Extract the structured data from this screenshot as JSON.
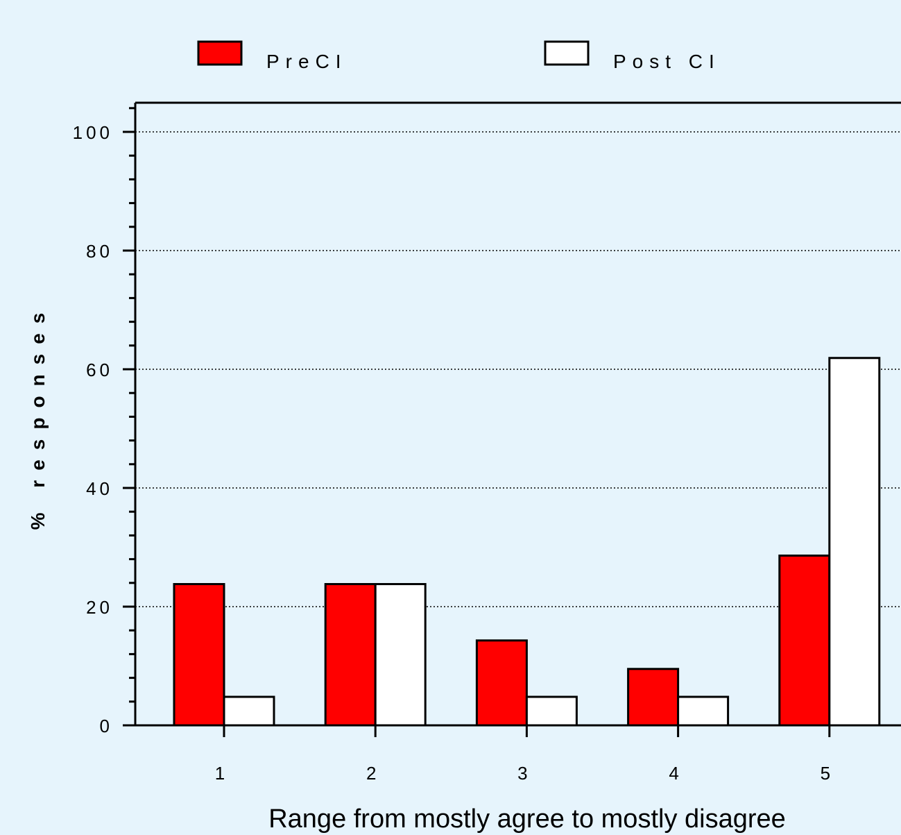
{
  "colors": {
    "background": "#e6f4fc",
    "pre": "#ff0000",
    "post": "#ffffff",
    "axis": "#000000"
  },
  "chart_data": {
    "type": "bar",
    "title": "",
    "xlabel": "Range from mostly agree to mostly disagree",
    "ylabel": "% responses",
    "categories": [
      "1",
      "2",
      "3",
      "4",
      "5"
    ],
    "series": [
      {
        "name": "PreCI",
        "color": "#ff0000",
        "values": [
          23.8,
          23.8,
          14.3,
          9.5,
          28.6
        ]
      },
      {
        "name": "Post CI",
        "color": "#ffffff",
        "values": [
          4.8,
          23.8,
          4.8,
          4.8,
          61.9
        ]
      }
    ],
    "ylim": [
      0,
      100
    ],
    "yticks": [
      "0",
      "20",
      "40",
      "60",
      "80",
      "100"
    ],
    "grid": "dotted horizontal",
    "legend": "top"
  }
}
